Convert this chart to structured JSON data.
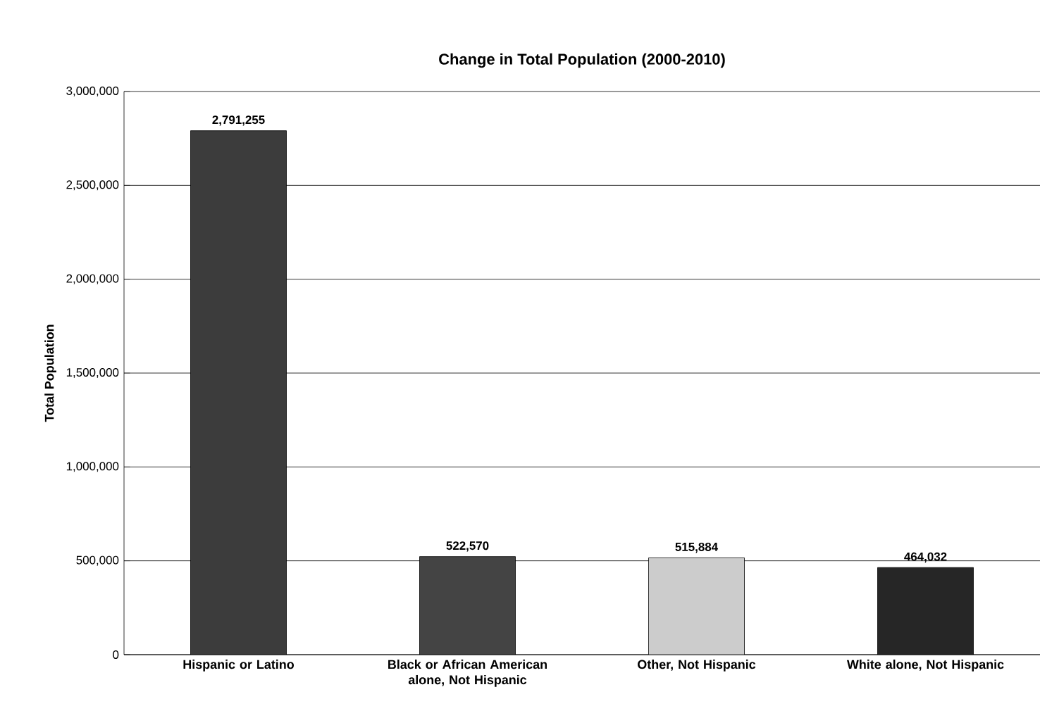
{
  "chart_data": {
    "type": "bar",
    "title": "Change in Total Population (2000-2010)",
    "ylabel": "Total Population",
    "categories": [
      "Hispanic or Latino",
      "Black or African American alone, Not Hispanic",
      "Other, Not Hispanic",
      "White alone, Not Hispanic"
    ],
    "values": [
      2791255,
      522570,
      515884,
      464032
    ],
    "value_labels": [
      "2,791,255",
      "522,570",
      "515,884",
      "464,032"
    ],
    "colors": [
      "#3c3c3c",
      "#444444",
      "#cccccc",
      "#262626"
    ],
    "ylim": [
      0,
      3000000
    ],
    "yticks": [
      {
        "value": 0,
        "label": "0"
      },
      {
        "value": 500000,
        "label": "500,000"
      },
      {
        "value": 1000000,
        "label": "1,000,000"
      },
      {
        "value": 1500000,
        "label": "1,500,000"
      },
      {
        "value": 2000000,
        "label": "2,000,000"
      },
      {
        "value": 2500000,
        "label": "2,500,000"
      },
      {
        "value": 3000000,
        "label": "3,000,000"
      }
    ],
    "grid": "y"
  }
}
